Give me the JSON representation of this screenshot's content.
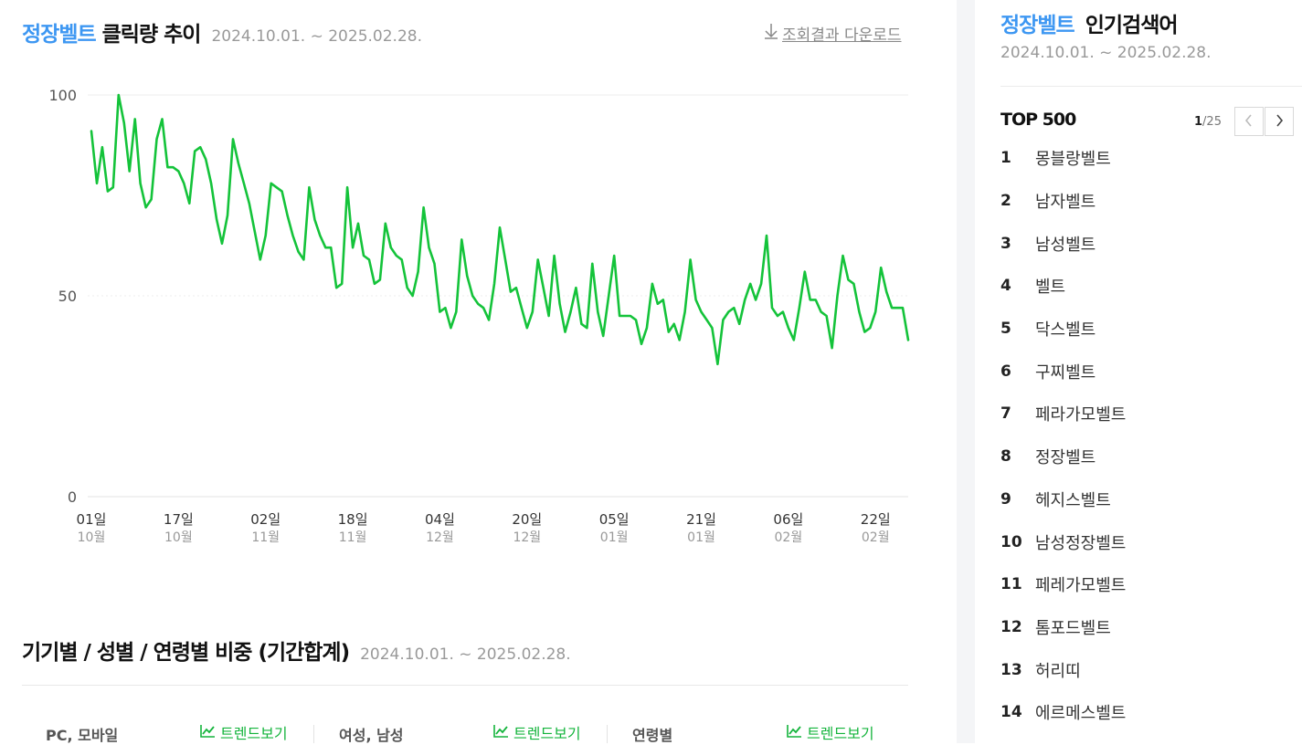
{
  "header": {
    "keyword": "정장벨트",
    "title_rest": "클릭량 추이",
    "date_range": "2024.10.01. ~ 2025.02.28.",
    "download_label": "조회결과 다운로드",
    "download_icon": "download-arrow-icon"
  },
  "chart_data": {
    "type": "line",
    "title": "",
    "xlabel": "",
    "ylabel": "",
    "ylim": [
      0,
      100
    ],
    "y_ticks": [
      "0",
      "50",
      "100"
    ],
    "grid": true,
    "line_color": "#14c33a",
    "x_ticks": [
      {
        "day": "01일",
        "month": "10월"
      },
      {
        "day": "17일",
        "month": "10월"
      },
      {
        "day": "02일",
        "month": "11월"
      },
      {
        "day": "18일",
        "month": "11월"
      },
      {
        "day": "04일",
        "month": "12월"
      },
      {
        "day": "20일",
        "month": "12월"
      },
      {
        "day": "05일",
        "month": "01월"
      },
      {
        "day": "21일",
        "month": "01월"
      },
      {
        "day": "06일",
        "month": "02월"
      },
      {
        "day": "22일",
        "month": "02월"
      }
    ],
    "x_start": "2024-10-01",
    "x_end": "2025-02-28",
    "series": [
      {
        "values": [
          91,
          78,
          87,
          76,
          77,
          100,
          93,
          81,
          94,
          78,
          72,
          74,
          89,
          94,
          82,
          82,
          81,
          78,
          73,
          86,
          87,
          84,
          78,
          69,
          63,
          70,
          89,
          83,
          78,
          73,
          66,
          59,
          65,
          78,
          77,
          76,
          70,
          65,
          61,
          59,
          77,
          69,
          65,
          62,
          62,
          52,
          53,
          77,
          62,
          68,
          60,
          59,
          53,
          54,
          68,
          62,
          60,
          59,
          52,
          50,
          56,
          72,
          62,
          58,
          46,
          47,
          42,
          46,
          64,
          55,
          50,
          48,
          47,
          44,
          53,
          67,
          59,
          51,
          52,
          47,
          42,
          46,
          59,
          52,
          45,
          60,
          48,
          41,
          46,
          52,
          43,
          42,
          58,
          46,
          40,
          50,
          60,
          45,
          45,
          45,
          44,
          38,
          42,
          53,
          48,
          49,
          41,
          43,
          39,
          46,
          59,
          49,
          46,
          44,
          42,
          33,
          44,
          46,
          47,
          43,
          49,
          53,
          49,
          53,
          65,
          47,
          45,
          46,
          42,
          39,
          47,
          56,
          49,
          49,
          46,
          45,
          37,
          50,
          60,
          54,
          53,
          46,
          41,
          42,
          46,
          57,
          51,
          47,
          47,
          47,
          39
        ]
      }
    ]
  },
  "section2": {
    "title": "기기별 / 성별 / 연령별 비중 (기간합계)",
    "date_range": "2024.10.01. ~ 2025.02.28.",
    "groups": [
      {
        "label": "PC, 모바일",
        "trend_label": "트렌드보기"
      },
      {
        "label": "여성, 남성",
        "trend_label": "트렌드보기"
      },
      {
        "label": "연령별",
        "trend_label": "트렌드보기"
      }
    ]
  },
  "sidebar": {
    "keyword": "정장벨트",
    "title_rest": "인기검색어",
    "date_range": "2024.10.01. ~ 2025.02.28.",
    "top_label": "TOP 500",
    "page_current": "1",
    "page_total": "/25",
    "items": [
      {
        "rank": "1",
        "text": "몽블랑벨트"
      },
      {
        "rank": "2",
        "text": "남자벨트"
      },
      {
        "rank": "3",
        "text": "남성벨트"
      },
      {
        "rank": "4",
        "text": "벨트"
      },
      {
        "rank": "5",
        "text": "닥스벨트"
      },
      {
        "rank": "6",
        "text": "구찌벨트"
      },
      {
        "rank": "7",
        "text": "페라가모벨트"
      },
      {
        "rank": "8",
        "text": "정장벨트"
      },
      {
        "rank": "9",
        "text": "헤지스벨트"
      },
      {
        "rank": "10",
        "text": "남성정장벨트"
      },
      {
        "rank": "11",
        "text": "페레가모벨트"
      },
      {
        "rank": "12",
        "text": "톰포드벨트"
      },
      {
        "rank": "13",
        "text": "허리띠"
      },
      {
        "rank": "14",
        "text": "에르메스벨트"
      }
    ]
  },
  "colors": {
    "accent_blue": "#3d97f2",
    "trend_green": "#14b43c",
    "muted": "#999999"
  }
}
